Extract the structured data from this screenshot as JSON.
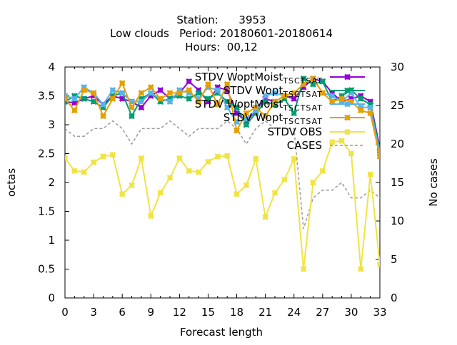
{
  "chart_data": {
    "type": "line",
    "title_lines": [
      "Station:      3953",
      "Low clouds   Period: 20180601-20180614",
      "Hours:  00,12"
    ],
    "xlabel": "Forecast length",
    "ylabel": "octas",
    "y2label": "No cases",
    "xlim": [
      0,
      33
    ],
    "ylim": [
      0,
      4
    ],
    "y2lim": [
      0,
      30
    ],
    "xticks": [
      "0",
      "3",
      "6",
      "9",
      "12",
      "15",
      "18",
      "21",
      "24",
      "27",
      "30",
      "33"
    ],
    "yticks": [
      "0",
      "0.5",
      "1",
      "1.5",
      "2",
      "2.5",
      "3",
      "3.5",
      "4"
    ],
    "y2ticks": [
      "0",
      "5",
      "10",
      "15",
      "20",
      "25",
      "30"
    ],
    "grid": false,
    "legend_position": "top-right",
    "x": [
      0,
      1,
      2,
      3,
      4,
      5,
      6,
      7,
      8,
      9,
      10,
      11,
      12,
      13,
      14,
      15,
      16,
      17,
      18,
      19,
      20,
      21,
      22,
      23,
      24,
      25,
      26,
      27,
      28,
      29,
      30,
      31,
      32,
      33
    ],
    "series": [
      {
        "legend_base": "STDV WoptMoist",
        "legend_subs": [
          "T",
          "S",
          "C",
          "T",
          "S",
          "A",
          "T"
        ],
        "color": "#9400d3",
        "marker": "x",
        "values": [
          3.4,
          3.38,
          3.45,
          3.5,
          3.35,
          3.5,
          3.45,
          3.4,
          3.3,
          3.5,
          3.6,
          3.45,
          3.55,
          3.75,
          3.6,
          3.4,
          3.65,
          3.6,
          3.2,
          3.05,
          3.25,
          3.45,
          3.4,
          3.5,
          3.45,
          3.65,
          3.8,
          3.75,
          3.55,
          3.4,
          3.45,
          3.5,
          3.4,
          2.6
        ]
      },
      {
        "legend_base": "STDV Wopt",
        "legend_subs": [
          "T",
          "S",
          "C",
          "T",
          "S",
          "A",
          "T"
        ],
        "color": "#009e73",
        "marker": "x",
        "values": [
          3.4,
          3.5,
          3.45,
          3.4,
          3.3,
          3.5,
          3.55,
          3.15,
          3.45,
          3.55,
          3.4,
          3.45,
          3.5,
          3.45,
          3.55,
          3.45,
          3.55,
          3.4,
          3.3,
          3.0,
          3.2,
          3.4,
          3.35,
          3.45,
          3.2,
          3.8,
          3.7,
          3.75,
          3.4,
          3.5,
          3.6,
          3.45,
          3.35,
          2.55
        ]
      },
      {
        "legend_base": "STDV WoptMoist",
        "legend_subs": [
          "T",
          "S",
          "C",
          "T",
          "S",
          "A",
          "T"
        ],
        "color": "#56b4e9",
        "marker": "x",
        "values": [
          3.5,
          3.45,
          3.65,
          3.55,
          3.35,
          3.6,
          3.55,
          3.4,
          3.4,
          3.55,
          3.45,
          3.4,
          3.6,
          3.55,
          3.45,
          3.65,
          3.6,
          3.3,
          3.05,
          3.1,
          3.25,
          3.5,
          3.55,
          3.5,
          3.55,
          3.7,
          3.8,
          3.55,
          3.5,
          3.4,
          3.55,
          3.3,
          3.3,
          2.5
        ]
      },
      {
        "legend_base": "STDV Wopt",
        "legend_subs": [
          "T",
          "S",
          "C",
          "T",
          "S",
          "A",
          "T"
        ],
        "color": "#e69f00",
        "marker": "x",
        "values": [
          3.45,
          3.25,
          3.6,
          3.55,
          3.15,
          3.45,
          3.72,
          3.3,
          3.55,
          3.65,
          3.45,
          3.55,
          3.55,
          3.6,
          3.4,
          3.7,
          3.35,
          3.7,
          2.9,
          3.2,
          3.3,
          3.15,
          3.4,
          3.5,
          3.55,
          3.7,
          3.8,
          3.55,
          3.4,
          3.45,
          3.4,
          3.25,
          3.2,
          2.45
        ]
      },
      {
        "legend_base": "STDV OBS",
        "legend_subs": [],
        "color": "#f0e442",
        "marker": "x",
        "values": [
          2.42,
          2.2,
          2.18,
          2.35,
          2.45,
          2.48,
          1.8,
          1.95,
          2.42,
          1.42,
          1.82,
          2.08,
          2.42,
          2.2,
          2.18,
          2.36,
          2.45,
          2.46,
          1.8,
          1.95,
          2.41,
          1.4,
          1.82,
          2.05,
          2.41,
          0.5,
          2.0,
          2.2,
          2.7,
          2.72,
          2.5,
          0.5,
          2.14,
          0.58
        ]
      },
      {
        "legend_base": "CASES",
        "legend_subs": [],
        "color": "#999999",
        "marker": "none",
        "dashed": true,
        "axis": "y2",
        "values": [
          22,
          21,
          21,
          22,
          22,
          23,
          22,
          20,
          22,
          22,
          22,
          23,
          22,
          21,
          22,
          22,
          22,
          23,
          22,
          20,
          22,
          23,
          22,
          22,
          22,
          9,
          13,
          14,
          14,
          15,
          13,
          13,
          14,
          13
        ]
      }
    ]
  }
}
